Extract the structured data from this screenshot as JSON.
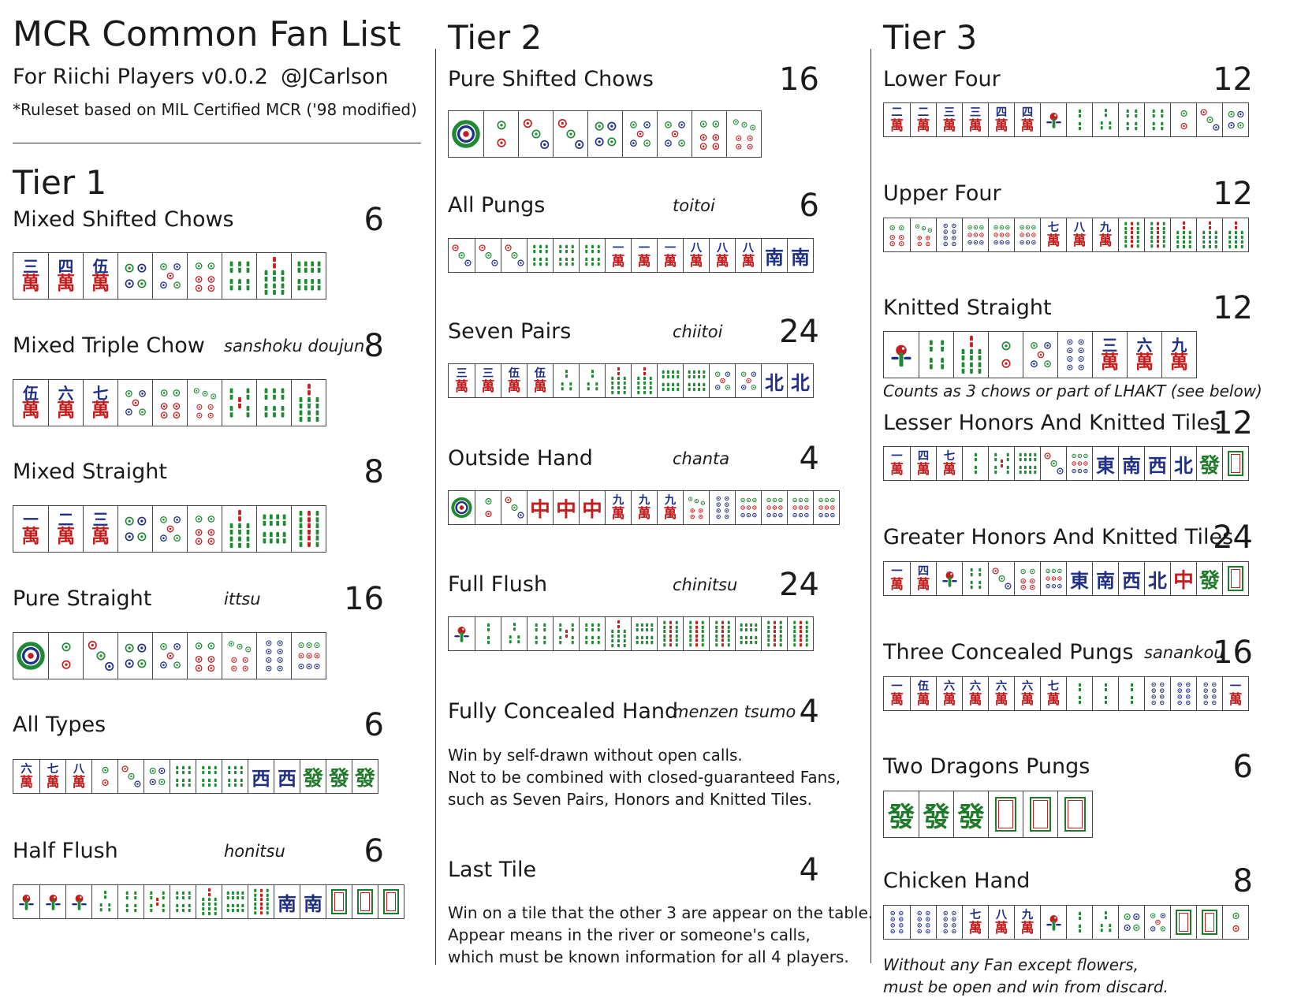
{
  "header": {
    "title": "MCR Common Fan List",
    "subtitle": "For Riichi Players v0.0.2",
    "handle": "@JCarlson",
    "note": "*Ruleset based on MIL Certified MCR ('98 modified)"
  },
  "columns": [
    {
      "tier": "Tier 1",
      "fans": [
        {
          "name": "Mixed Shifted Chows",
          "jp": "",
          "points": "6",
          "tiles": [
            "m3",
            "m4",
            "m5",
            "p4",
            "p5",
            "p6",
            "s6",
            "s7",
            "s8"
          ]
        },
        {
          "name": "Mixed Triple Chow",
          "jp": "sanshoku doujun",
          "points": "8",
          "tiles": [
            "m5",
            "m6",
            "m7",
            "p5",
            "p6",
            "p7",
            "s5",
            "s6",
            "s7"
          ]
        },
        {
          "name": "Mixed Straight",
          "jp": "",
          "points": "8",
          "tiles": [
            "m1",
            "m2",
            "m3",
            "p4",
            "p5",
            "p6",
            "s7",
            "s8",
            "s9"
          ]
        },
        {
          "name": "Pure Straight",
          "jp": "ittsu",
          "points": "16",
          "tiles": [
            "p1",
            "p2",
            "p3",
            "p4",
            "p5",
            "p6",
            "p7",
            "p8",
            "p9"
          ]
        },
        {
          "name": "All Types",
          "jp": "",
          "points": "6",
          "tiles": [
            "m6",
            "m7",
            "m8",
            "p2",
            "p3",
            "p4",
            "s6",
            "s6",
            "s6",
            "W",
            "W",
            "F",
            "F",
            "F"
          ]
        },
        {
          "name": "Half Flush",
          "jp": "honitsu",
          "points": "6",
          "tiles": [
            "s1",
            "s1",
            "s1",
            "s3",
            "s4",
            "s5",
            "s6",
            "s7",
            "s8",
            "s9",
            "S",
            "S",
            "P",
            "P",
            "P"
          ]
        }
      ]
    },
    {
      "tier": "Tier 2",
      "fans": [
        {
          "name": "Pure Shifted Chows",
          "jp": "",
          "points": "16",
          "tiles": [
            "p1",
            "p2",
            "p3",
            "p3",
            "p4",
            "p5",
            "p5",
            "p6",
            "p7"
          ]
        },
        {
          "name": "All Pungs",
          "jp": "toitoi",
          "points": "6",
          "tiles": [
            "p3",
            "p3",
            "p3",
            "s6",
            "s6",
            "s6",
            "m1",
            "m1",
            "m1",
            "m8",
            "m8",
            "m8",
            "S",
            "S"
          ]
        },
        {
          "name": "Seven Pairs",
          "jp": "chiitoi",
          "points": "24",
          "tiles": [
            "m3",
            "m3",
            "m5",
            "m5",
            "s3",
            "s3",
            "s7",
            "s7",
            "s8",
            "s8",
            "p5",
            "p5",
            "N",
            "N"
          ]
        },
        {
          "name": "Outside Hand",
          "jp": "chanta",
          "points": "4",
          "tiles": [
            "p1",
            "p2",
            "p3",
            "C",
            "C",
            "C",
            "m9",
            "m9",
            "m9",
            "p7",
            "p8",
            "p9",
            "p9",
            "p9",
            "p9"
          ]
        },
        {
          "name": "Full Flush",
          "jp": "chinitsu",
          "points": "24",
          "tiles": [
            "s1",
            "s2",
            "s3",
            "s4",
            "s5",
            "s6",
            "s7",
            "s8",
            "s9",
            "s9",
            "s9",
            "s8",
            "s9",
            "s9"
          ]
        },
        {
          "name": "Fully Concealed Hand",
          "jp": "menzen tsumo",
          "points": "4",
          "lines": [
            "Win by self-drawn without open calls.",
            "Not to be combined with closed-guaranteed Fans,",
            "such as Seven Pairs, Honors and Knitted Tiles."
          ]
        },
        {
          "name": "Last Tile",
          "jp": "",
          "points": "4",
          "lines": [
            "Win on a tile that the other 3 are appear on the table.",
            "Appear means in the river or someone's calls,",
            "which must be known information for all 4 players."
          ]
        }
      ]
    },
    {
      "tier": "Tier 3",
      "fans": [
        {
          "name": "Lower Four",
          "jp": "",
          "points": "12",
          "tiles": [
            "m2",
            "m2",
            "m3",
            "m3",
            "m4",
            "m4",
            "s1",
            "s2",
            "s3",
            "s4",
            "s4",
            "p2",
            "p3",
            "p4"
          ]
        },
        {
          "name": "Upper Four",
          "jp": "",
          "points": "12",
          "tiles": [
            "p6",
            "p7",
            "p8",
            "p9",
            "p9",
            "p9",
            "m7",
            "m8",
            "m9",
            "s9",
            "s9",
            "s7",
            "s7",
            "s7"
          ]
        },
        {
          "name": "Knitted Straight",
          "jp": "",
          "points": "12",
          "tiles": [
            "s1",
            "s4",
            "s7",
            "p2",
            "p5",
            "p8",
            "m3",
            "m6",
            "m9"
          ],
          "note": "Counts as 3 chows or part of LHAKT (see below)"
        },
        {
          "name": "Lesser Honors And Knitted Tiles",
          "jp": "",
          "points": "12",
          "tiles": [
            "m1",
            "m4",
            "m7",
            "s2",
            "s5",
            "s8",
            "p3",
            "p9",
            "E",
            "S",
            "W",
            "N",
            "F",
            "P"
          ]
        },
        {
          "name": "Greater Honors And Knitted Tiles",
          "jp": "",
          "points": "24",
          "tiles": [
            "m1",
            "m4",
            "s1",
            "s4",
            "p3",
            "p6",
            "p9",
            "E",
            "S",
            "W",
            "N",
            "C",
            "F",
            "P"
          ]
        },
        {
          "name": "Three Concealed Pungs",
          "jp": "sanankou",
          "points": "16",
          "tiles": [
            "m1",
            "m5",
            "m6",
            "m6",
            "m6",
            "m6",
            "m7",
            "s2",
            "s2",
            "s2",
            "p8",
            "p8",
            "p8",
            "m1"
          ]
        },
        {
          "name": "Two Dragons Pungs",
          "jp": "",
          "points": "6",
          "tiles": [
            "F",
            "F",
            "F",
            "P",
            "P",
            "P"
          ]
        },
        {
          "name": "Chicken Hand",
          "jp": "",
          "points": "8",
          "tiles": [
            "p8",
            "p8",
            "p8",
            "m7",
            "m8",
            "m9",
            "s1",
            "s2",
            "s3",
            "p4",
            "p5",
            "P",
            "P",
            "p2"
          ],
          "note_lines": [
            "Without any Fan except flowers,",
            "must be open and win from discard."
          ]
        }
      ]
    }
  ],
  "glyphs": {
    "man_numerals": [
      "一",
      "二",
      "三",
      "四",
      "伍",
      "六",
      "七",
      "八",
      "九"
    ],
    "man_suffix": "萬",
    "winds": {
      "E": "東",
      "S": "南",
      "W": "西",
      "N": "北"
    },
    "dragons": {
      "C": "中",
      "F": "發"
    }
  },
  "colors": {
    "man_top": "#1f2f86",
    "man_bottom": "#c51d1d",
    "bamboo": "#1f8a33",
    "red": "#c51d1d",
    "blue": "#1f2f86",
    "green": "#1f7a2a"
  }
}
